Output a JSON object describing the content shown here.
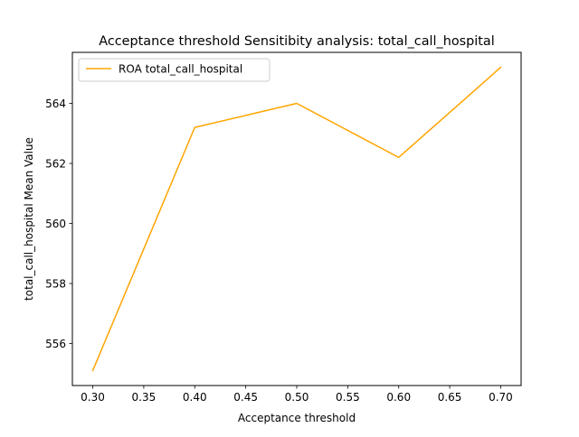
{
  "chart_data": {
    "type": "line",
    "title": "Acceptance threshold Sensitibity analysis: total_call_hospital",
    "xlabel": "Acceptance threshold",
    "ylabel": "total_call_hospital Mean Value",
    "xlim": [
      0.28,
      0.72
    ],
    "ylim": [
      554.6,
      565.7
    ],
    "x_ticks": [
      0.3,
      0.35,
      0.4,
      0.45,
      0.5,
      0.55,
      0.6,
      0.65,
      0.7
    ],
    "x_tick_labels": [
      "0.30",
      "0.35",
      "0.40",
      "0.45",
      "0.50",
      "0.55",
      "0.60",
      "0.65",
      "0.70"
    ],
    "y_ticks": [
      556,
      558,
      560,
      562,
      564
    ],
    "y_tick_labels": [
      "556",
      "558",
      "560",
      "562",
      "564"
    ],
    "grid": false,
    "legend_position": "top-left",
    "series": [
      {
        "name": "ROA total_call_hospital",
        "color": "#ffa500",
        "x": [
          0.3,
          0.4,
          0.5,
          0.6,
          0.7
        ],
        "y": [
          555.1,
          563.2,
          564.0,
          562.2,
          565.2
        ]
      }
    ]
  }
}
